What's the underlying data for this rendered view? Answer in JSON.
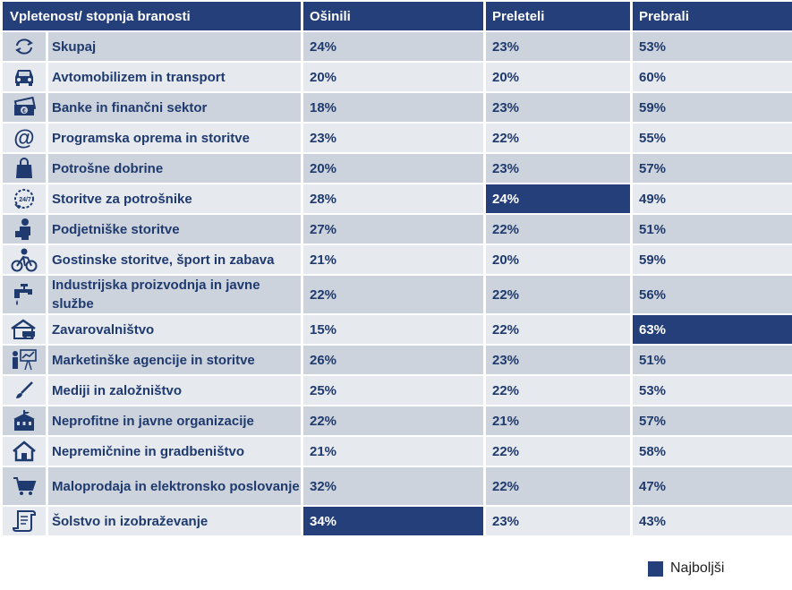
{
  "chart_data": {
    "type": "table",
    "columns": [
      "Vpletenost/ stopnja branosti",
      "Ošinili",
      "Preleteli",
      "Prebrali"
    ],
    "rows": [
      {
        "label": "Skupaj",
        "icon": "refresh-icon",
        "values": [
          "24%",
          "23%",
          "53%"
        ],
        "best": [
          false,
          false,
          false
        ]
      },
      {
        "label": "Avtomobilizem in transport",
        "icon": "car-icon",
        "values": [
          "20%",
          "20%",
          "60%"
        ],
        "best": [
          false,
          false,
          false
        ]
      },
      {
        "label": "Banke in finančni sektor",
        "icon": "money-icon",
        "values": [
          "18%",
          "23%",
          "59%"
        ],
        "best": [
          false,
          false,
          false
        ]
      },
      {
        "label": "Programska oprema in storitve",
        "icon": "at-sign-icon",
        "values": [
          "23%",
          "22%",
          "55%"
        ],
        "best": [
          false,
          false,
          false
        ]
      },
      {
        "label": "Potrošne dobrine",
        "icon": "shopping-bag-icon",
        "values": [
          "20%",
          "23%",
          "57%"
        ],
        "best": [
          false,
          false,
          false
        ]
      },
      {
        "label": "Storitve za potrošnike",
        "icon": "phone-24-7-icon",
        "values": [
          "28%",
          "24%",
          "49%"
        ],
        "best": [
          false,
          true,
          false
        ]
      },
      {
        "label": "Podjetniške storitve",
        "icon": "businessman-icon",
        "values": [
          "27%",
          "22%",
          "51%"
        ],
        "best": [
          false,
          false,
          false
        ]
      },
      {
        "label": "Gostinske storitve, šport in zabava",
        "icon": "cyclist-icon",
        "values": [
          "21%",
          "20%",
          "59%"
        ],
        "best": [
          false,
          false,
          false
        ]
      },
      {
        "label": "Industrijska proizvodnja in javne službe",
        "icon": "faucet-icon",
        "values": [
          "22%",
          "22%",
          "56%"
        ],
        "best": [
          false,
          false,
          false
        ]
      },
      {
        "label": "Zavarovalništvo",
        "icon": "house-car-icon",
        "values": [
          "15%",
          "22%",
          "63%"
        ],
        "best": [
          false,
          false,
          true
        ]
      },
      {
        "label": "Marketinške agencije in storitve",
        "icon": "presentation-icon",
        "values": [
          "26%",
          "23%",
          "51%"
        ],
        "best": [
          false,
          false,
          false
        ]
      },
      {
        "label": "Mediji in založništvo",
        "icon": "brush-icon",
        "values": [
          "25%",
          "22%",
          "53%"
        ],
        "best": [
          false,
          false,
          false
        ]
      },
      {
        "label": "Neprofitne in javne organizacije",
        "icon": "public-building-icon",
        "values": [
          "22%",
          "21%",
          "57%"
        ],
        "best": [
          false,
          false,
          false
        ]
      },
      {
        "label": "Nepremičnine in gradbeništvo",
        "icon": "house-icon",
        "values": [
          "21%",
          "22%",
          "58%"
        ],
        "best": [
          false,
          false,
          false
        ]
      },
      {
        "label": "Maloprodaja in elektronsko poslovanje",
        "icon": "shopping-cart-icon",
        "values": [
          "32%",
          "22%",
          "47%"
        ],
        "best": [
          false,
          false,
          false
        ]
      },
      {
        "label": "Šolstvo in izobraževanje",
        "icon": "scroll-icon",
        "values": [
          "34%",
          "23%",
          "43%"
        ],
        "best": [
          true,
          false,
          false
        ]
      }
    ],
    "legend": {
      "label": "Najboljši",
      "color": "#243f7a"
    }
  },
  "colors": {
    "header": "#243f7a",
    "row_odd": "#cdd3dc",
    "row_even": "#e6e9ee",
    "text": "#1f3a6e"
  }
}
